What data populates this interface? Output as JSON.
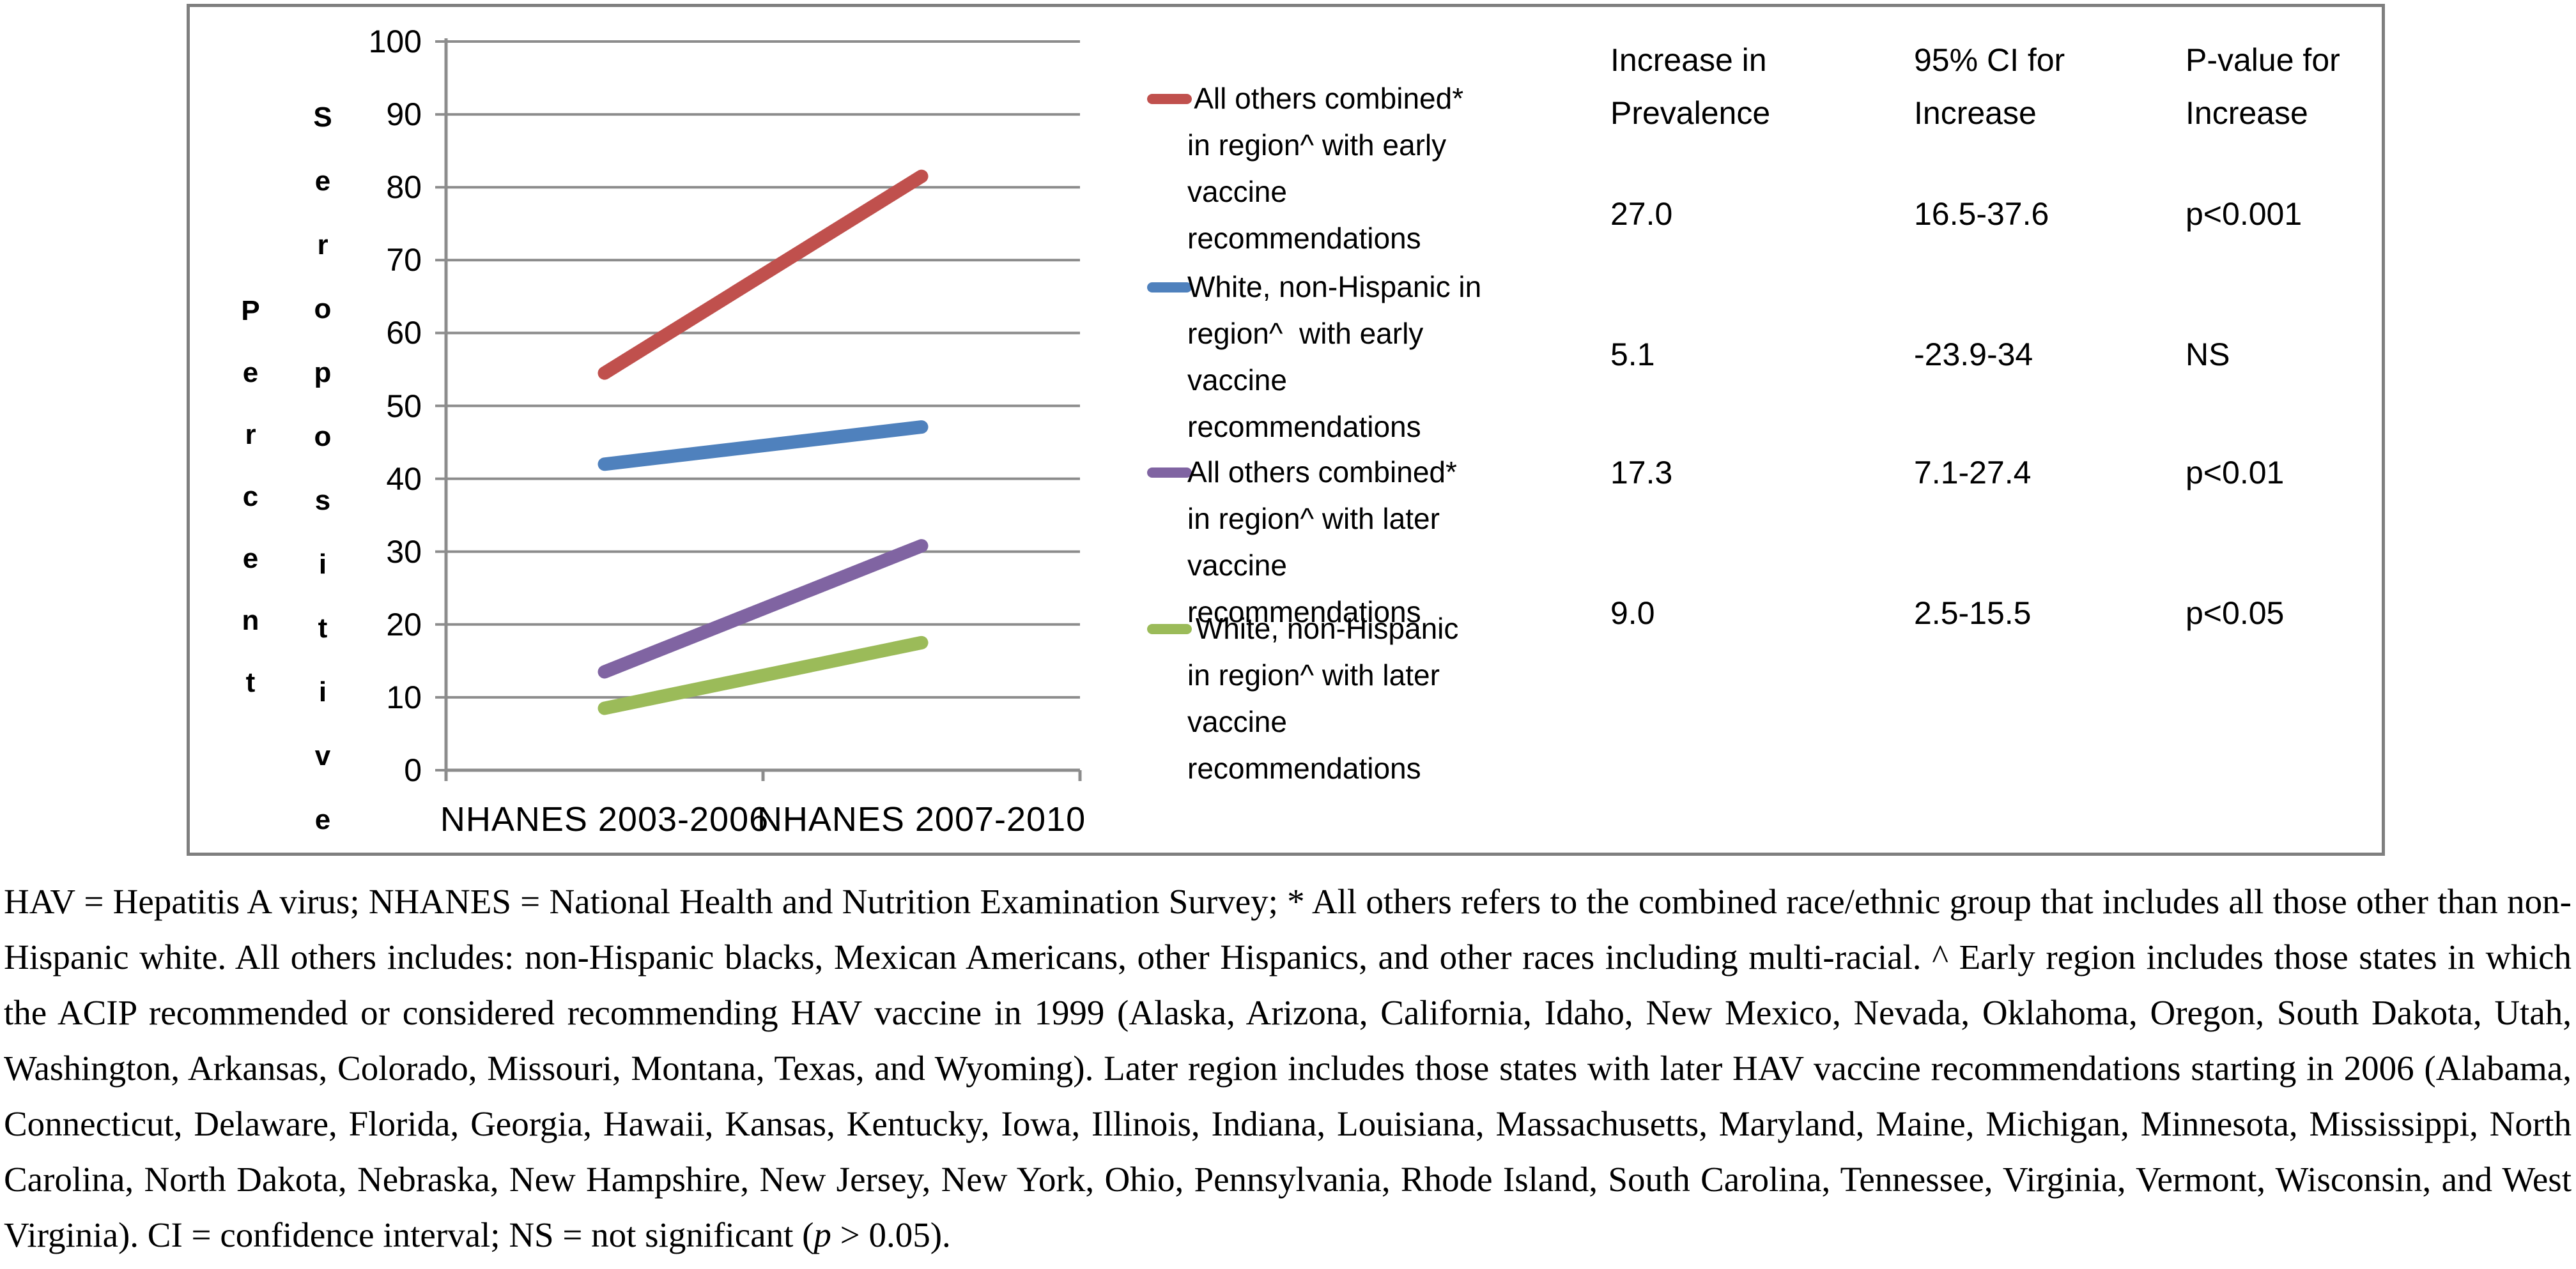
{
  "chart": {
    "y_axis_title_words": [
      "Percent",
      "Seropositive"
    ],
    "y_ticks": [
      "0",
      "10",
      "20",
      "30",
      "40",
      "50",
      "60",
      "70",
      "80",
      "90",
      "100"
    ],
    "categories": [
      "NHANES 2003-2006",
      "NHANES 2007-2010"
    ]
  },
  "chart_data": {
    "type": "line",
    "categories": [
      "NHANES 2003-2006",
      "NHANES 2007-2010"
    ],
    "series": [
      {
        "name": "All others combined* in region^ with early vaccine recommendations",
        "color": "#C0504D",
        "values": [
          54.5,
          81.5
        ]
      },
      {
        "name": "White, non-Hispanic in region^ with early vaccine recommendations",
        "color": "#4F81BD",
        "values": [
          42.0,
          47.1
        ]
      },
      {
        "name": "All others combined* in region^ with later vaccine recommendations",
        "color": "#8064A2",
        "values": [
          13.5,
          30.8
        ]
      },
      {
        "name": "White, non-Hispanic in region^ with later vaccine recommendations",
        "color": "#9BBB59",
        "values": [
          8.5,
          17.5
        ]
      }
    ],
    "title": "",
    "xlabel": "",
    "ylabel": "Percent Seropositive",
    "ylim": [
      0,
      100
    ],
    "y_step": 10,
    "grid": true,
    "legend_position": "right"
  },
  "legend": {
    "entries": [
      {
        "color": "#C0504D",
        "lines": [
          " All others combined*",
          "in region^ with early",
          "vaccine",
          "recommendations"
        ]
      },
      {
        "color": "#4F81BD",
        "lines": [
          "White, non-Hispanic in",
          "region^  with early",
          "vaccine",
          "recommendations"
        ]
      },
      {
        "color": "#8064A2",
        "lines": [
          "All others combined*",
          "in region^ with later",
          "vaccine",
          "recommendations"
        ]
      },
      {
        "color": "#9BBB59",
        "lines": [
          " White, non-Hispanic",
          "in region^ with later",
          "vaccine",
          "recommendations"
        ]
      }
    ]
  },
  "table": {
    "columns": [
      {
        "header_lines": [
          "Increase in",
          "Prevalence"
        ]
      },
      {
        "header_lines": [
          "95% CI for",
          "Increase"
        ]
      },
      {
        "header_lines": [
          "P-value for",
          "Increase"
        ]
      }
    ],
    "rows": [
      [
        "27.0",
        "16.5-37.6",
        "p<0.001"
      ],
      [
        "5.1",
        "-23.9-34",
        "NS"
      ],
      [
        "17.3",
        "7.1-27.4",
        "p<0.01"
      ],
      [
        "9.0",
        "2.5-15.5",
        "p<0.05"
      ]
    ]
  },
  "footnote": {
    "segments": [
      {
        "text": "HAV = Hepatitis A virus; NHANES = National Health and Nutrition Examination Survey; * All others refers to the combined race/ethnic group that includes all those other than non-Hispanic white. All others includes: non-Hispanic blacks, Mexican Americans, other Hispanics, and other races including multi-racial. ^ Early region includes those states in which the ACIP recommended or considered recommending HAV vaccine in 1999 (Alaska, Arizona, California, Idaho, New Mexico, Nevada, Oklahoma, Oregon, South Dakota, Utah, Washington, Arkansas, Colorado, Missouri, Montana, Texas, and Wyoming). Later region includes those states with later HAV vaccine recommendations starting in 2006 (Alabama, Connecticut, Delaware, Florida, Georgia, Hawaii, Kansas, Kentucky, Iowa, Illinois, Indiana, Louisiana, Massachusetts, Maryland, Maine, Michigan, Minnesota, Mississippi, North Carolina, North Dakota, Nebraska, New Hampshire, New Jersey, New York, Ohio, Pennsylvania, Rhode Island, South Carolina, Tennessee, Virginia, Vermont, Wisconsin, and West Virginia). CI = confidence interval; NS = not significant (",
        "italic": false
      },
      {
        "text": "p",
        "italic": true
      },
      {
        "text": " > 0.05).",
        "italic": false
      }
    ]
  },
  "colors": {
    "grid": "#8C8C8C",
    "axis": "#8C8C8C",
    "figure_border": "#7F7F7F",
    "text": "#000000"
  }
}
